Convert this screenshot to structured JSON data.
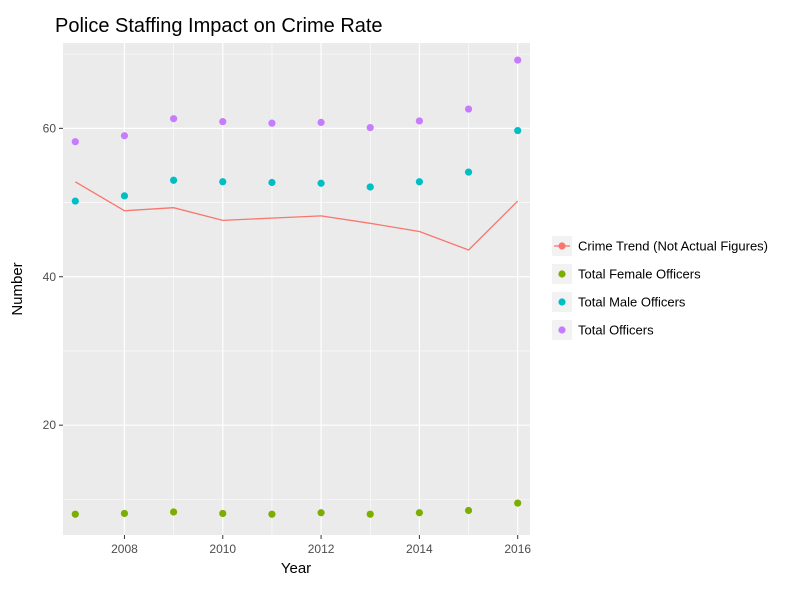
{
  "chart_data": {
    "type": "line",
    "title": "Police Staffing Impact on Crime Rate",
    "xlabel": "Year",
    "ylabel": "Number",
    "x": [
      2007,
      2008,
      2009,
      2010,
      2011,
      2012,
      2013,
      2014,
      2015,
      2016
    ],
    "xlim": [
      2006.75,
      2016.25
    ],
    "ylim": [
      5.2,
      71.5
    ],
    "x_ticks": [
      2008,
      2010,
      2012,
      2014,
      2016
    ],
    "y_ticks": [
      20,
      40,
      60
    ],
    "grid": true,
    "legend_position": "right",
    "series": [
      {
        "name": "Crime Trend (Not Actual Figures)",
        "kind": "line",
        "color": "#F8766D",
        "values": [
          52.8,
          48.9,
          49.3,
          47.6,
          47.9,
          48.2,
          47.2,
          46.1,
          43.6,
          50.2
        ]
      },
      {
        "name": "Total Female Officers",
        "kind": "points",
        "color": "#7CAE00",
        "values": [
          8.0,
          8.1,
          8.3,
          8.1,
          8.0,
          8.2,
          8.0,
          8.2,
          8.5,
          9.5
        ]
      },
      {
        "name": "Total Male Officers",
        "kind": "points",
        "color": "#00BFC4",
        "values": [
          50.2,
          50.9,
          53.0,
          52.8,
          52.7,
          52.6,
          52.1,
          52.8,
          54.1,
          59.7
        ]
      },
      {
        "name": "Total Officers",
        "kind": "points",
        "color": "#C77CFF",
        "values": [
          58.2,
          59.0,
          61.3,
          60.9,
          60.7,
          60.8,
          60.1,
          61.0,
          62.6,
          69.2
        ]
      }
    ]
  },
  "colors": {
    "panel_background": "#EBEBEB",
    "grid_major": "#FFFFFF"
  }
}
